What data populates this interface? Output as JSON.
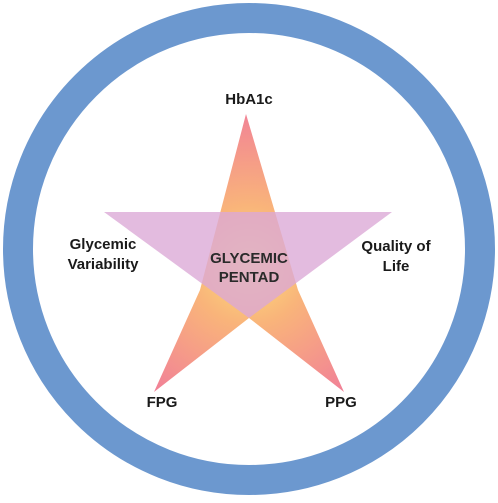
{
  "diagram": {
    "title": "GLYCEMIC PENTAD",
    "title_lines": [
      "GLYCEMIC",
      "PENTAD"
    ],
    "labels": {
      "top": "HbA1c",
      "left_lines": [
        "Glycemic",
        "Variability"
      ],
      "right_lines": [
        "Quality of",
        "Life"
      ],
      "bottom_left": "FPG",
      "bottom_right": "PPG"
    },
    "colors": {
      "ring": "#6c98cf",
      "star_pink": "#f07a9b",
      "star_orange": "#f9b47a",
      "star_yellow": "#fbe07a",
      "triangle": "#dba8d6"
    }
  }
}
